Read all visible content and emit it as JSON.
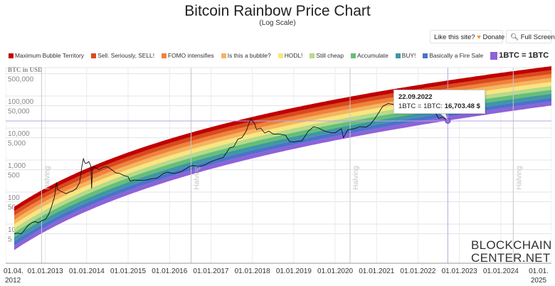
{
  "header": {
    "title": "Bitcoin Rainbow Price Chart",
    "subtitle": "(Log Scale)"
  },
  "buttons": {
    "donate_prefix": "Like this site?",
    "donate_label": "Donate",
    "fullscreen_label": "Full Screen"
  },
  "icons": {
    "donate": "heart-icon",
    "fullscreen": "magnifier-icon"
  },
  "legend": [
    {
      "label": "Maximum Bubble Territory",
      "color": "#c00000"
    },
    {
      "label": "Sell. Seriously, SELL!",
      "color": "#d94a1e"
    },
    {
      "label": "FOMO intensifies",
      "color": "#f0823a"
    },
    {
      "label": "Is this a bubble?",
      "color": "#f5b560"
    },
    {
      "label": "HODL!",
      "color": "#f9e67f"
    },
    {
      "label": "Still cheap",
      "color": "#b7d98b"
    },
    {
      "label": "Accumulate",
      "color": "#64bf78"
    },
    {
      "label": "BUY!",
      "color": "#3f97a3"
    },
    {
      "label": "Basically a Fire Sale",
      "color": "#4a73c9"
    },
    {
      "label": "1BTC = 1BTC",
      "color": "#8e62d9"
    }
  ],
  "tooltip": {
    "date": "22.09.2022",
    "series": "1BTC = 1BTC:",
    "value": "16,703.48 $"
  },
  "logo": {
    "line1": "BLOCKCHAIN",
    "line2": "CENTER.NET"
  },
  "chart_data": {
    "type": "line",
    "title": "Bitcoin Rainbow Price Chart",
    "subtitle": "(Log Scale)",
    "ylabel": "BTC in USD",
    "yscale": "log",
    "ylim": [
      0.6,
      780000
    ],
    "xlim": [
      "01.04.2012",
      "01.03.2025"
    ],
    "grid": true,
    "legend_position": "top",
    "y_ticks": [
      "500,000",
      "100,000",
      "50,000",
      "10,000",
      "5,000",
      "1,000",
      "500",
      "100",
      "50",
      "10",
      "5"
    ],
    "y_tick_values": [
      500000,
      100000,
      50000,
      10000,
      5000,
      1000,
      500,
      100,
      50,
      10,
      5
    ],
    "x_ticks": [
      {
        "label": "01.04.",
        "label2": "2012",
        "date": 2012.25
      },
      {
        "label": "01.01.2013",
        "date": 2013.0
      },
      {
        "label": "01.01.2014",
        "date": 2014.0
      },
      {
        "label": "01.01.2015",
        "date": 2015.0
      },
      {
        "label": "01.01.2016",
        "date": 2016.0
      },
      {
        "label": "01.01.2017",
        "date": 2017.0
      },
      {
        "label": "01.01.2018",
        "date": 2018.0
      },
      {
        "label": "01.01.2019",
        "date": 2019.0
      },
      {
        "label": "01.01.2020",
        "date": 2020.0
      },
      {
        "label": "01.01.2021",
        "date": 2021.0
      },
      {
        "label": "01.01.2022",
        "date": 2022.0
      },
      {
        "label": "01.01.2023",
        "date": 2023.0
      },
      {
        "label": "01.01.2024",
        "date": 2024.0
      },
      {
        "label": "01.01.",
        "label2": "2025",
        "date": 2025.0
      }
    ],
    "halvings": [
      {
        "label": "Halving",
        "date": 2012.91
      },
      {
        "label": "Halving",
        "date": 2016.52
      },
      {
        "label": "Halving",
        "date": 2020.36
      },
      {
        "label": "Halving",
        "date": 2024.3
      }
    ],
    "bands_bottom_up": [
      "1BTC = 1BTC",
      "Basically a Fire Sale",
      "BUY!",
      "Accumulate",
      "Still cheap",
      "HODL!",
      "Is this a bubble?",
      "FOMO intensifies",
      "Sell. Seriously, SELL!",
      "Maximum Bubble Territory"
    ],
    "crosshair": {
      "date": "22.09.2022",
      "value": 16703.48
    },
    "series": [
      {
        "name": "1BTC = 1BTC",
        "x": [
          2012.25,
          2012.33,
          2012.42,
          2012.5,
          2012.58,
          2012.67,
          2012.75,
          2012.83,
          2012.92,
          2013.0,
          2013.08,
          2013.15,
          2013.22,
          2013.27,
          2013.3,
          2013.35,
          2013.42,
          2013.5,
          2013.58,
          2013.67,
          2013.75,
          2013.83,
          2013.88,
          2013.92,
          2013.96,
          2014.0,
          2014.05,
          2014.1,
          2014.12,
          2014.14,
          2014.2,
          2014.3,
          2014.4,
          2014.5,
          2014.6,
          2014.7,
          2014.8,
          2014.9,
          2015.0,
          2015.05,
          2015.15,
          2015.3,
          2015.45,
          2015.55,
          2015.7,
          2015.85,
          2015.95,
          2016.1,
          2016.3,
          2016.45,
          2016.55,
          2016.7,
          2016.85,
          2017.0,
          2017.1,
          2017.2,
          2017.3,
          2017.45,
          2017.55,
          2017.65,
          2017.75,
          2017.85,
          2017.92,
          2017.96,
          2018.05,
          2018.1,
          2018.2,
          2018.3,
          2018.4,
          2018.5,
          2018.65,
          2018.8,
          2018.9,
          2019.0,
          2019.2,
          2019.35,
          2019.48,
          2019.6,
          2019.75,
          2019.9,
          2020.0,
          2020.15,
          2020.2,
          2020.3,
          2020.45,
          2020.6,
          2020.75,
          2020.85,
          2020.95,
          2021.05,
          2021.15,
          2021.28,
          2021.4,
          2021.5,
          2021.6,
          2021.75,
          2021.85,
          2021.95,
          2022.05,
          2022.2,
          2022.3,
          2022.42,
          2022.5,
          2022.6,
          2022.72
        ],
        "y": [
          5,
          5.2,
          5,
          6.5,
          9,
          11,
          12,
          11,
          13,
          14,
          20,
          35,
          70,
          200,
          120,
          110,
          100,
          90,
          100,
          110,
          130,
          200,
          600,
          1100,
          800,
          800,
          900,
          650,
          130,
          600,
          600,
          500,
          600,
          620,
          500,
          400,
          380,
          330,
          300,
          220,
          240,
          230,
          240,
          260,
          270,
          380,
          420,
          380,
          440,
          600,
          680,
          620,
          700,
          900,
          1000,
          1100,
          1200,
          2400,
          2600,
          4500,
          5000,
          8000,
          14000,
          19000,
          14000,
          9000,
          10000,
          7000,
          8000,
          6500,
          6500,
          6000,
          3800,
          3700,
          4000,
          8000,
          11000,
          10000,
          8000,
          7200,
          7200,
          9500,
          5000,
          8800,
          9500,
          11000,
          10800,
          13000,
          19000,
          30000,
          48000,
          58000,
          55000,
          35000,
          32000,
          55000,
          65000,
          47000,
          42000,
          44000,
          40000,
          30000,
          20000,
          22000,
          16703.48
        ]
      }
    ]
  }
}
